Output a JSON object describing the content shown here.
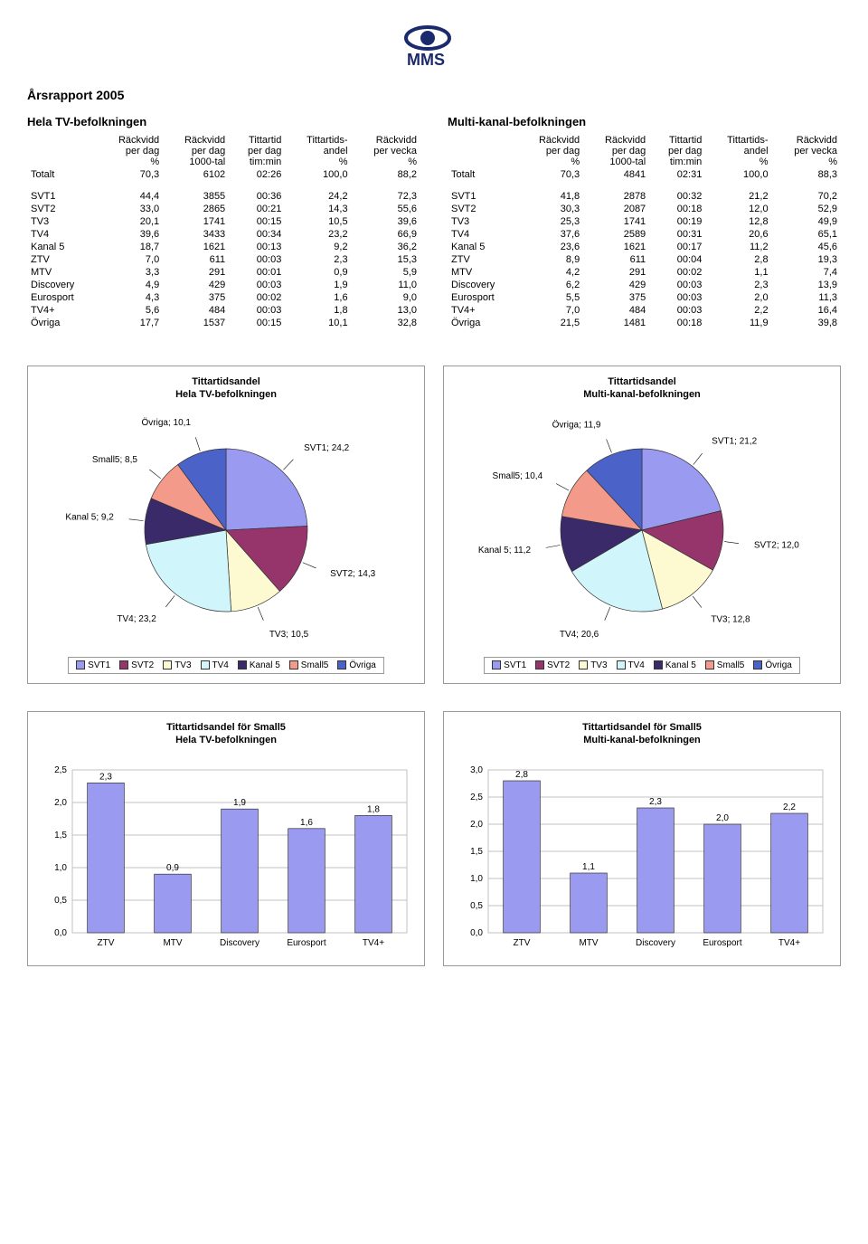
{
  "logo_text": "MMS",
  "report_title": "Årsrapport 2005",
  "column_headers": {
    "c1": [
      "Räckvidd",
      "per dag",
      "%"
    ],
    "c2": [
      "Räckvidd",
      "per dag",
      "1000-tal"
    ],
    "c3": [
      "Tittartid",
      "per dag",
      "tim:min"
    ],
    "c4": [
      "Tittartids-",
      "andel",
      "%"
    ],
    "c5": [
      "Räckvidd",
      "per vecka",
      "%"
    ]
  },
  "left_table": {
    "title": "Hela TV-befolkningen",
    "total_label": "Totalt",
    "total": [
      "70,3",
      "6102",
      "02:26",
      "100,0",
      "88,2"
    ],
    "rows": [
      {
        "label": "SVT1",
        "vals": [
          "44,4",
          "3855",
          "00:36",
          "24,2",
          "72,3"
        ]
      },
      {
        "label": "SVT2",
        "vals": [
          "33,0",
          "2865",
          "00:21",
          "14,3",
          "55,6"
        ]
      },
      {
        "label": "TV3",
        "vals": [
          "20,1",
          "1741",
          "00:15",
          "10,5",
          "39,6"
        ]
      },
      {
        "label": "TV4",
        "vals": [
          "39,6",
          "3433",
          "00:34",
          "23,2",
          "66,9"
        ]
      },
      {
        "label": "Kanal 5",
        "vals": [
          "18,7",
          "1621",
          "00:13",
          "9,2",
          "36,2"
        ]
      },
      {
        "label": "ZTV",
        "vals": [
          "7,0",
          "611",
          "00:03",
          "2,3",
          "15,3"
        ]
      },
      {
        "label": "MTV",
        "vals": [
          "3,3",
          "291",
          "00:01",
          "0,9",
          "5,9"
        ]
      },
      {
        "label": "Discovery",
        "vals": [
          "4,9",
          "429",
          "00:03",
          "1,9",
          "11,0"
        ]
      },
      {
        "label": "Eurosport",
        "vals": [
          "4,3",
          "375",
          "00:02",
          "1,6",
          "9,0"
        ]
      },
      {
        "label": "TV4+",
        "vals": [
          "5,6",
          "484",
          "00:03",
          "1,8",
          "13,0"
        ]
      },
      {
        "label": "Övriga",
        "vals": [
          "17,7",
          "1537",
          "00:15",
          "10,1",
          "32,8"
        ]
      }
    ]
  },
  "right_table": {
    "title": "Multi-kanal-befolkningen",
    "total_label": "Totalt",
    "total": [
      "70,3",
      "4841",
      "02:31",
      "100,0",
      "88,3"
    ],
    "rows": [
      {
        "label": "SVT1",
        "vals": [
          "41,8",
          "2878",
          "00:32",
          "21,2",
          "70,2"
        ]
      },
      {
        "label": "SVT2",
        "vals": [
          "30,3",
          "2087",
          "00:18",
          "12,0",
          "52,9"
        ]
      },
      {
        "label": "TV3",
        "vals": [
          "25,3",
          "1741",
          "00:19",
          "12,8",
          "49,9"
        ]
      },
      {
        "label": "TV4",
        "vals": [
          "37,6",
          "2589",
          "00:31",
          "20,6",
          "65,1"
        ]
      },
      {
        "label": "Kanal 5",
        "vals": [
          "23,6",
          "1621",
          "00:17",
          "11,2",
          "45,6"
        ]
      },
      {
        "label": "ZTV",
        "vals": [
          "8,9",
          "611",
          "00:04",
          "2,8",
          "19,3"
        ]
      },
      {
        "label": "MTV",
        "vals": [
          "4,2",
          "291",
          "00:02",
          "1,1",
          "7,4"
        ]
      },
      {
        "label": "Discovery",
        "vals": [
          "6,2",
          "429",
          "00:03",
          "2,3",
          "13,9"
        ]
      },
      {
        "label": "Eurosport",
        "vals": [
          "5,5",
          "375",
          "00:03",
          "2,0",
          "11,3"
        ]
      },
      {
        "label": "TV4+",
        "vals": [
          "7,0",
          "484",
          "00:03",
          "2,2",
          "16,4"
        ]
      },
      {
        "label": "Övriga",
        "vals": [
          "21,5",
          "1481",
          "00:18",
          "11,9",
          "39,8"
        ]
      }
    ]
  },
  "pie_colors": {
    "SVT1": "#9a9af0",
    "SVT2": "#96356c",
    "TV3": "#fdfad2",
    "TV4": "#d0f5fb",
    "Kanal 5": "#3b2a6a",
    "Small5": "#f49a8a",
    "Övriga": "#4b62c8"
  },
  "pie_left": {
    "title_line1": "Tittartidsandel",
    "title_line2": "Hela TV-befolkningen",
    "slices": [
      {
        "name": "SVT1",
        "value": 24.2,
        "label": "SVT1; 24,2"
      },
      {
        "name": "SVT2",
        "value": 14.3,
        "label": "SVT2; 14,3"
      },
      {
        "name": "TV3",
        "value": 10.5,
        "label": "TV3; 10,5"
      },
      {
        "name": "TV4",
        "value": 23.2,
        "label": "TV4; 23,2"
      },
      {
        "name": "Kanal 5",
        "value": 9.2,
        "label": "Kanal 5; 9,2"
      },
      {
        "name": "Small5",
        "value": 8.5,
        "label": "Small5; 8,5"
      },
      {
        "name": "Övriga",
        "value": 10.1,
        "label": "Övriga; 10,1"
      }
    ]
  },
  "pie_right": {
    "title_line1": "Tittartidsandel",
    "title_line2": "Multi-kanal-befolkningen",
    "slices": [
      {
        "name": "SVT1",
        "value": 21.2,
        "label": "SVT1; 21,2"
      },
      {
        "name": "SVT2",
        "value": 12.0,
        "label": "SVT2; 12,0"
      },
      {
        "name": "TV3",
        "value": 12.8,
        "label": "TV3; 12,8"
      },
      {
        "name": "TV4",
        "value": 20.6,
        "label": "TV4; 20,6"
      },
      {
        "name": "Kanal 5",
        "value": 11.2,
        "label": "Kanal 5; 11,2"
      },
      {
        "name": "Small5",
        "value": 10.4,
        "label": "Small5; 10,4"
      },
      {
        "name": "Övriga",
        "value": 11.9,
        "label": "Övriga; 11,9"
      }
    ]
  },
  "legend_order": [
    "SVT1",
    "SVT2",
    "TV3",
    "TV4",
    "Kanal 5",
    "Small5",
    "Övriga"
  ],
  "bar_left": {
    "title_line1": "Tittartidsandel för Small5",
    "title_line2": "Hela TV-befolkningen",
    "ymax": 2.5,
    "ystep": 0.5,
    "categories": [
      "ZTV",
      "MTV",
      "Discovery",
      "Eurosport",
      "TV4+"
    ],
    "values": [
      2.3,
      0.9,
      1.9,
      1.6,
      1.8
    ],
    "value_labels": [
      "2,3",
      "0,9",
      "1,9",
      "1,6",
      "1,8"
    ],
    "bar_color": "#9a9af0",
    "grid_color": "#c0c0c0",
    "background_color": "#ffffff"
  },
  "bar_right": {
    "title_line1": "Tittartidsandel för Small5",
    "title_line2": "Multi-kanal-befolkningen",
    "ymax": 3.0,
    "ystep": 0.5,
    "categories": [
      "ZTV",
      "MTV",
      "Discovery",
      "Eurosport",
      "TV4+"
    ],
    "values": [
      2.8,
      1.1,
      2.3,
      2.0,
      2.2
    ],
    "value_labels": [
      "2,8",
      "1,1",
      "2,3",
      "2,0",
      "2,2"
    ],
    "bar_color": "#9a9af0",
    "grid_color": "#c0c0c0",
    "background_color": "#ffffff"
  }
}
